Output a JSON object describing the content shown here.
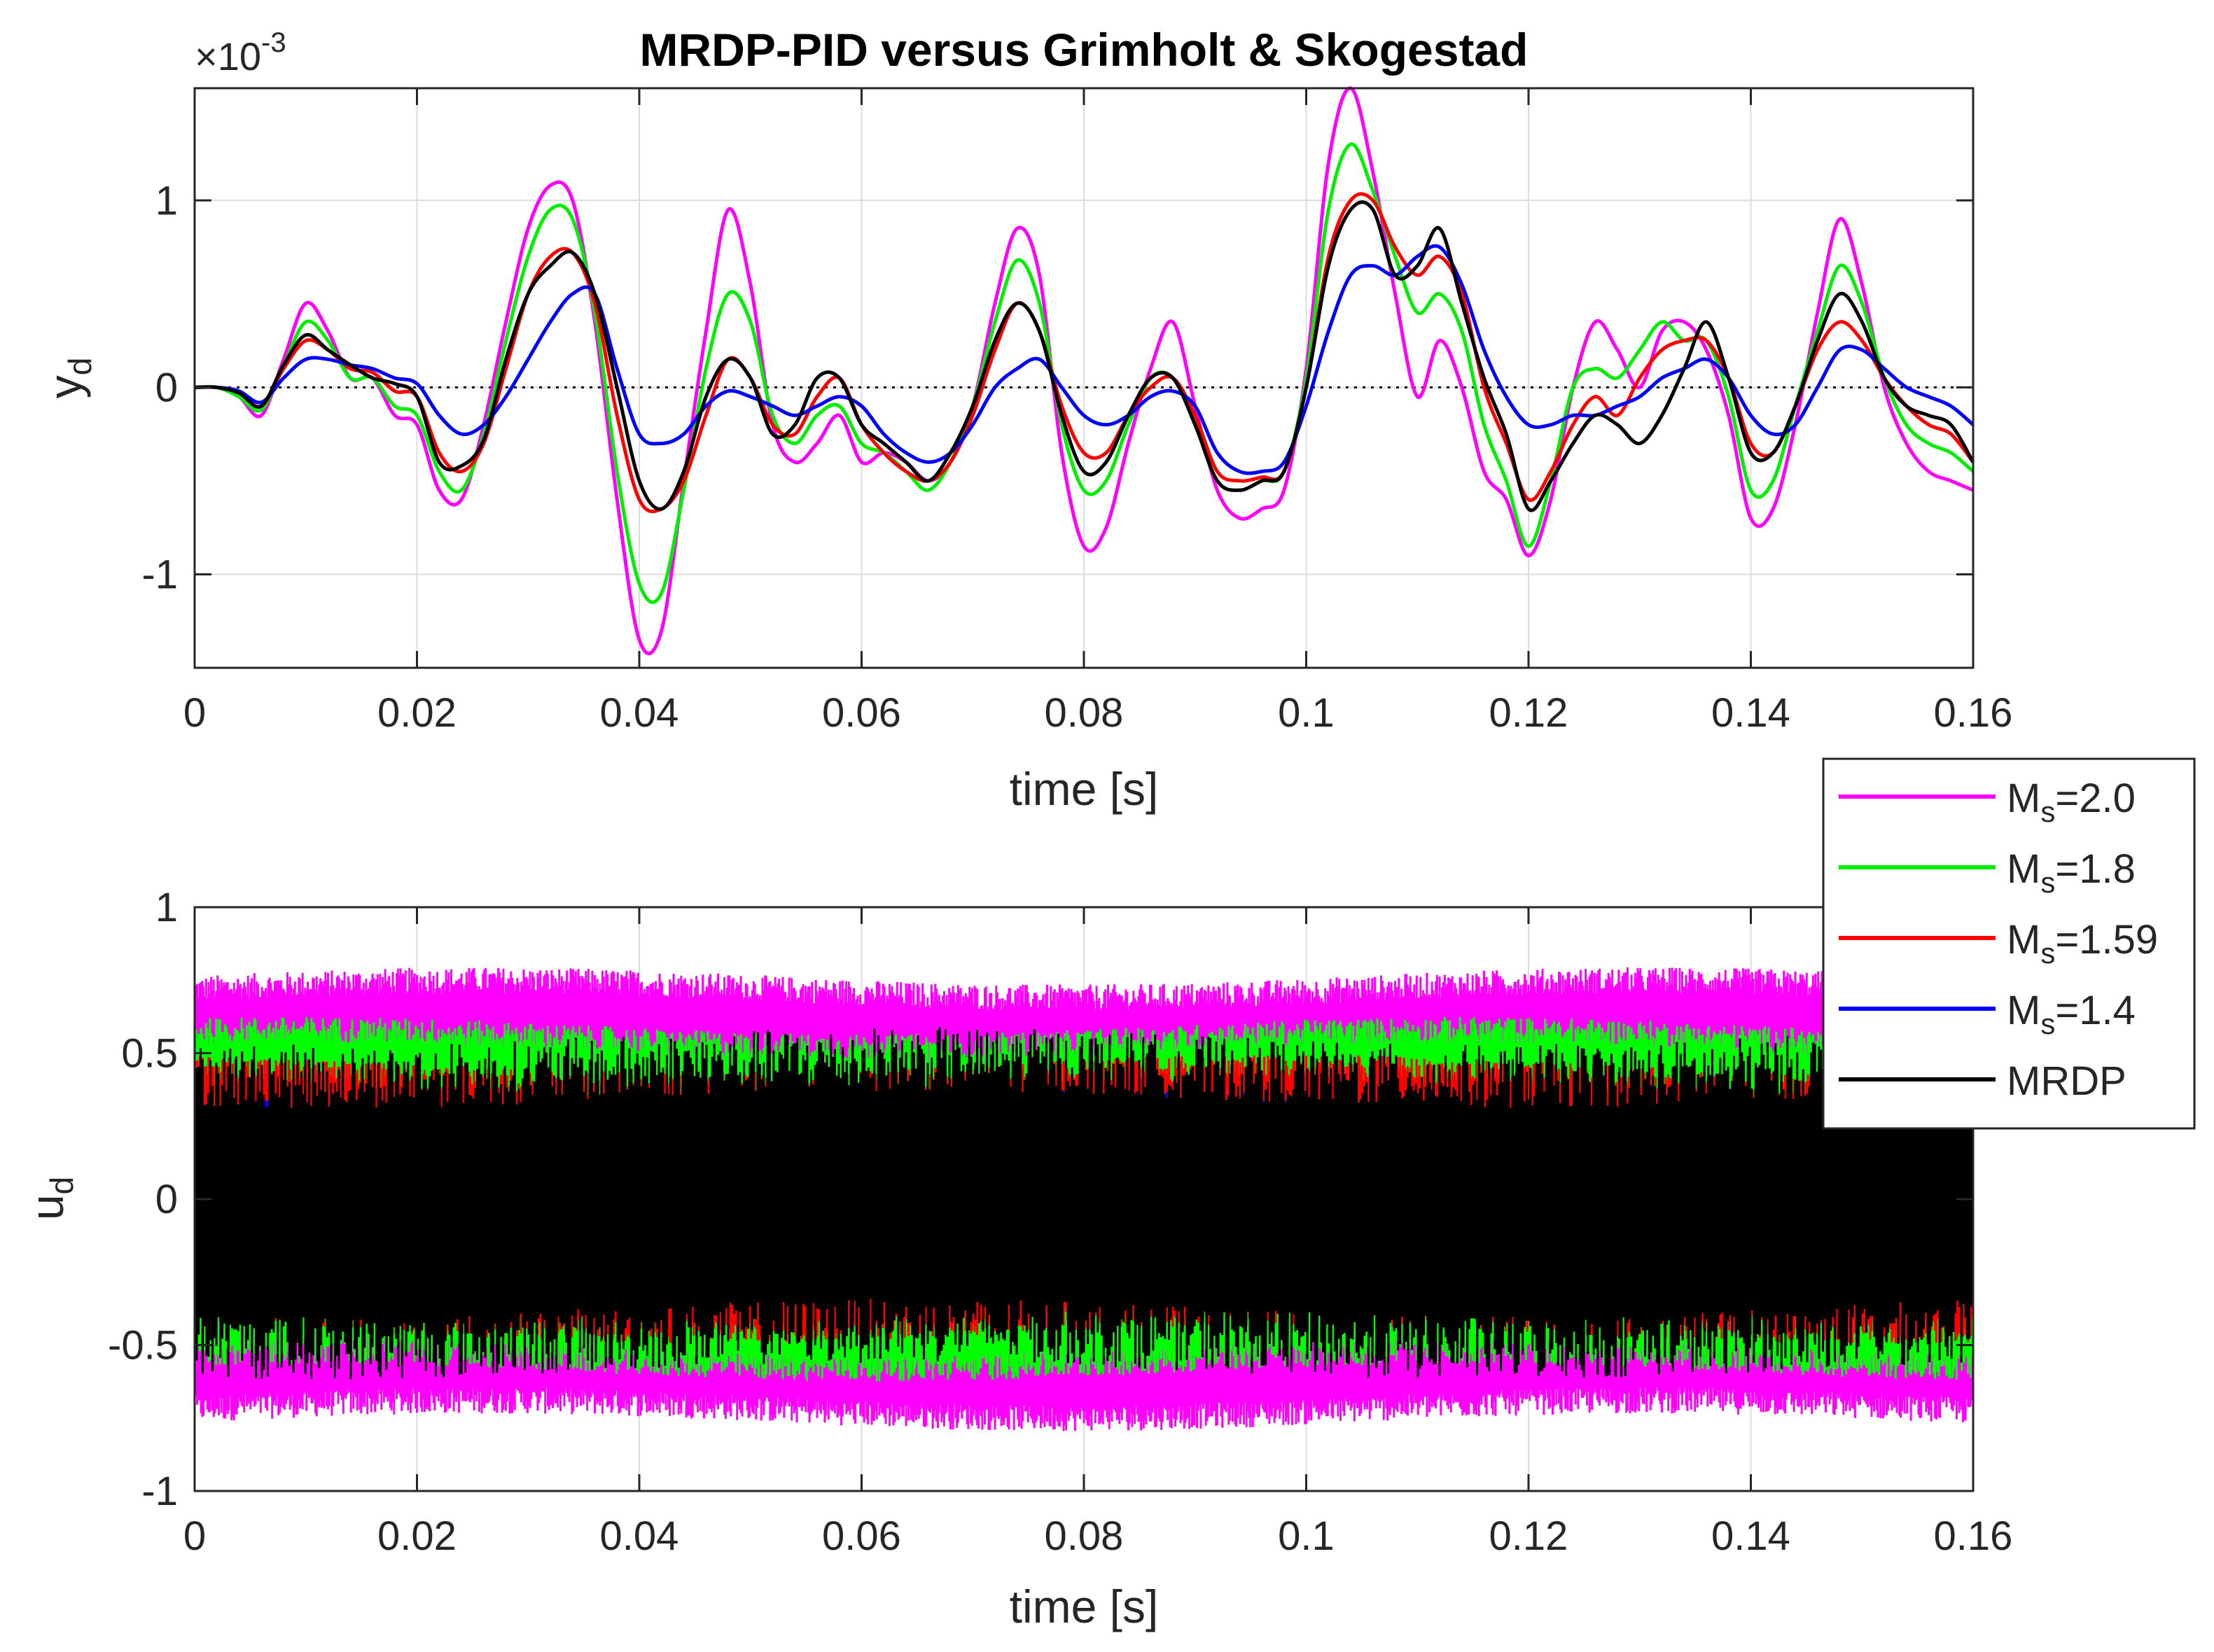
{
  "figure": {
    "title": "MRDP-PID versus Grimholt & Skogestad"
  },
  "chart_data": [
    {
      "type": "line",
      "title": "MRDP-PID versus Grimholt & Skogestad",
      "xlabel": "time [s]",
      "ylabel_main": "y",
      "ylabel_sub": "d",
      "exponent_prefix": "×10",
      "exponent_power": "-3",
      "xlim": [
        0,
        0.16
      ],
      "ylim": [
        -1.5,
        1.6
      ],
      "x_ticks": [
        "0",
        "0.02",
        "0.04",
        "0.06",
        "0.08",
        "0.1",
        "0.12",
        "0.14",
        "0.16"
      ],
      "y_ticks": [
        "-1",
        "0",
        "1"
      ],
      "grid": true,
      "zero_reference_line": true,
      "x": [
        0,
        0.002,
        0.004,
        0.006,
        0.008,
        0.01,
        0.012,
        0.014,
        0.016,
        0.018,
        0.02,
        0.022,
        0.024,
        0.026,
        0.028,
        0.03,
        0.032,
        0.034,
        0.036,
        0.038,
        0.04,
        0.042,
        0.044,
        0.046,
        0.048,
        0.05,
        0.052,
        0.054,
        0.056,
        0.058,
        0.06,
        0.062,
        0.064,
        0.066,
        0.068,
        0.07,
        0.072,
        0.074,
        0.076,
        0.078,
        0.08,
        0.082,
        0.084,
        0.086,
        0.088,
        0.09,
        0.092,
        0.094,
        0.096,
        0.098,
        0.1,
        0.102,
        0.104,
        0.106,
        0.108,
        0.11,
        0.112,
        0.114,
        0.116,
        0.118,
        0.12,
        0.122,
        0.124,
        0.126,
        0.128,
        0.13,
        0.132,
        0.134,
        0.136,
        0.138,
        0.14,
        0.142,
        0.144,
        0.146,
        0.148,
        0.15,
        0.152,
        0.154,
        0.156,
        0.158,
        0.16
      ],
      "series": [
        {
          "name": "Ms=2.0",
          "color": "#ff00ff",
          "values": [
            0,
            0,
            -0.05,
            -0.15,
            0.15,
            0.45,
            0.3,
            0.05,
            0.05,
            -0.15,
            -0.2,
            -0.55,
            -0.6,
            -0.2,
            0.35,
            0.85,
            1.08,
            1.0,
            0.35,
            -0.6,
            -1.35,
            -1.3,
            -0.5,
            0.3,
            0.95,
            0.55,
            -0.2,
            -0.4,
            -0.3,
            -0.15,
            -0.4,
            -0.35,
            -0.4,
            -0.5,
            -0.4,
            -0.1,
            0.45,
            0.85,
            0.6,
            -0.35,
            -0.85,
            -0.75,
            -0.3,
            0.1,
            0.35,
            -0.1,
            -0.55,
            -0.7,
            -0.65,
            -0.55,
            0.1,
            1.2,
            1.6,
            1.15,
            0.5,
            -0.05,
            0.25,
            0.0,
            -0.45,
            -0.6,
            -0.9,
            -0.6,
            0.0,
            0.35,
            0.2,
            0.0,
            0.3,
            0.35,
            0.2,
            -0.15,
            -0.7,
            -0.65,
            -0.2,
            0.4,
            0.9,
            0.55,
            0.0,
            -0.3,
            -0.45,
            -0.5,
            -0.55
          ]
        },
        {
          "name": "Ms=1.8",
          "color": "#00ee00",
          "values": [
            0,
            0,
            -0.05,
            -0.12,
            0.12,
            0.35,
            0.25,
            0.05,
            0.05,
            -0.1,
            -0.15,
            -0.45,
            -0.55,
            -0.25,
            0.25,
            0.7,
            0.95,
            0.9,
            0.4,
            -0.45,
            -1.05,
            -1.1,
            -0.55,
            0.1,
            0.5,
            0.35,
            -0.15,
            -0.3,
            -0.15,
            -0.1,
            -0.3,
            -0.35,
            -0.45,
            -0.55,
            -0.4,
            -0.1,
            0.35,
            0.68,
            0.45,
            -0.2,
            -0.55,
            -0.5,
            -0.2,
            0.05,
            0.05,
            -0.2,
            -0.5,
            -0.55,
            -0.5,
            -0.45,
            0.05,
            0.95,
            1.3,
            1.05,
            0.7,
            0.4,
            0.5,
            0.3,
            -0.2,
            -0.5,
            -0.85,
            -0.5,
            0.0,
            0.1,
            0.05,
            0.2,
            0.35,
            0.25,
            0.25,
            -0.05,
            -0.55,
            -0.5,
            -0.1,
            0.3,
            0.65,
            0.45,
            0.05,
            -0.2,
            -0.3,
            -0.35,
            -0.45
          ]
        },
        {
          "name": "Ms=1.59",
          "color": "#ff0000",
          "values": [
            0,
            0,
            -0.03,
            -0.1,
            0.1,
            0.25,
            0.2,
            0.1,
            0.08,
            -0.02,
            -0.05,
            -0.35,
            -0.45,
            -0.3,
            0.1,
            0.5,
            0.7,
            0.72,
            0.45,
            -0.15,
            -0.6,
            -0.65,
            -0.5,
            -0.15,
            0.15,
            0.05,
            -0.2,
            -0.25,
            -0.05,
            0.05,
            -0.2,
            -0.35,
            -0.45,
            -0.5,
            -0.4,
            -0.15,
            0.2,
            0.45,
            0.3,
            -0.1,
            -0.35,
            -0.35,
            -0.15,
            0.0,
            0.05,
            -0.15,
            -0.45,
            -0.5,
            -0.48,
            -0.45,
            0.0,
            0.7,
            1.0,
            1.0,
            0.75,
            0.6,
            0.7,
            0.5,
            0.0,
            -0.3,
            -0.6,
            -0.45,
            -0.2,
            -0.05,
            -0.15,
            0.05,
            0.2,
            0.25,
            0.25,
            0.05,
            -0.3,
            -0.35,
            -0.1,
            0.2,
            0.35,
            0.25,
            0.05,
            -0.1,
            -0.2,
            -0.25,
            -0.4
          ]
        },
        {
          "name": "Ms=1.4",
          "color": "#0000ff",
          "values": [
            0,
            0,
            -0.02,
            -0.08,
            0.05,
            0.15,
            0.15,
            0.12,
            0.1,
            0.05,
            0.02,
            -0.15,
            -0.25,
            -0.2,
            -0.05,
            0.15,
            0.35,
            0.5,
            0.5,
            0.1,
            -0.25,
            -0.3,
            -0.25,
            -0.1,
            -0.02,
            -0.05,
            -0.1,
            -0.15,
            -0.1,
            -0.05,
            -0.1,
            -0.25,
            -0.35,
            -0.4,
            -0.35,
            -0.2,
            0.0,
            0.1,
            0.15,
            0.0,
            -0.15,
            -0.2,
            -0.15,
            -0.05,
            -0.02,
            -0.1,
            -0.35,
            -0.45,
            -0.45,
            -0.4,
            -0.1,
            0.3,
            0.6,
            0.65,
            0.6,
            0.7,
            0.75,
            0.55,
            0.2,
            -0.05,
            -0.2,
            -0.2,
            -0.15,
            -0.15,
            -0.1,
            -0.05,
            0.05,
            0.1,
            0.15,
            0.05,
            -0.15,
            -0.25,
            -0.2,
            0.0,
            0.2,
            0.2,
            0.1,
            0.0,
            -0.05,
            -0.1,
            -0.2
          ]
        },
        {
          "name": "MRDP",
          "color": "#000000",
          "values": [
            0,
            0,
            -0.03,
            -0.1,
            0.12,
            0.28,
            0.2,
            0.12,
            0.05,
            0.02,
            -0.05,
            -0.4,
            -0.42,
            -0.28,
            0.15,
            0.5,
            0.65,
            0.72,
            0.5,
            0.0,
            -0.5,
            -0.65,
            -0.45,
            -0.05,
            0.15,
            0.05,
            -0.25,
            -0.2,
            0.05,
            0.05,
            -0.2,
            -0.3,
            -0.4,
            -0.5,
            -0.35,
            -0.1,
            0.25,
            0.45,
            0.3,
            -0.15,
            -0.45,
            -0.4,
            -0.15,
            0.05,
            0.05,
            -0.2,
            -0.5,
            -0.55,
            -0.5,
            -0.45,
            0.0,
            0.65,
            0.95,
            0.95,
            0.6,
            0.65,
            0.85,
            0.45,
            0.05,
            -0.25,
            -0.65,
            -0.5,
            -0.3,
            -0.15,
            -0.2,
            -0.3,
            -0.15,
            0.1,
            0.35,
            0.05,
            -0.35,
            -0.35,
            -0.1,
            0.25,
            0.5,
            0.35,
            0.05,
            -0.1,
            -0.15,
            -0.2,
            -0.4
          ]
        }
      ]
    },
    {
      "type": "area",
      "xlabel": "time [s]",
      "ylabel_main": "u",
      "ylabel_sub": "d",
      "xlim": [
        0,
        0.16
      ],
      "ylim": [
        -1,
        1
      ],
      "x_ticks": [
        "0",
        "0.02",
        "0.04",
        "0.06",
        "0.08",
        "0.1",
        "0.12",
        "0.14",
        "0.16"
      ],
      "y_ticks": [
        "-1",
        "-0.5",
        "0",
        "0.5",
        "1"
      ],
      "grid": true,
      "description_of_bands": "noisy control signals; each series fills an approximate symmetric band around 0",
      "series": [
        {
          "name": "Ms=2.0",
          "color": "#ff00ff",
          "band_upper": 0.72,
          "band_lower": -0.72
        },
        {
          "name": "Ms=1.8",
          "color": "#00ff00",
          "band_upper": 0.55,
          "band_lower": -0.55
        },
        {
          "name": "Ms=1.59",
          "color": "#ff0000",
          "band_upper": 0.42,
          "band_lower": -0.42
        },
        {
          "name": "Ms=1.4",
          "color": "#0000ff",
          "band_upper": 0.3,
          "band_lower": -0.3
        },
        {
          "name": "MRDP",
          "color": "#000000",
          "band_upper": 0.45,
          "band_lower": -0.48
        }
      ]
    }
  ],
  "legend": {
    "placement": "right, between the two axes",
    "entries": [
      {
        "main": "M",
        "sub": "s",
        "suffix": "=2.0",
        "color": "#ff00ff"
      },
      {
        "main": "M",
        "sub": "s",
        "suffix": "=1.8",
        "color": "#00ee00"
      },
      {
        "main": "M",
        "sub": "s",
        "suffix": "=1.59",
        "color": "#ff0000"
      },
      {
        "main": "M",
        "sub": "s",
        "suffix": "=1.4",
        "color": "#0000ff"
      },
      {
        "main": "MRDP",
        "sub": "",
        "suffix": "",
        "color": "#000000"
      }
    ]
  }
}
